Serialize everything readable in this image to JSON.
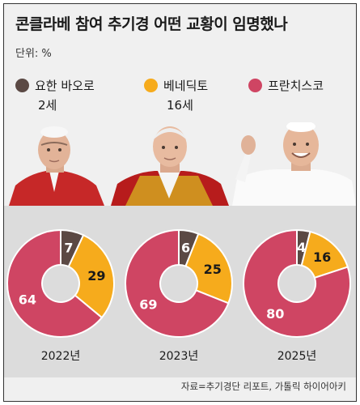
{
  "title": "콘클라베 참여 추기경 어떤 교황이 임명했나",
  "unit": "단위: %",
  "legend": [
    {
      "name": "요한 바오로",
      "sub": "2세",
      "color": "#5b4944"
    },
    {
      "name": "베네딕토",
      "sub": "16세",
      "color": "#f6ab1c"
    },
    {
      "name": "프란치스코",
      "sub": "",
      "color": "#cf4563"
    }
  ],
  "photos": [
    {
      "name": "pope-john-paul-ii-photo"
    },
    {
      "name": "pope-benedict-xvi-photo"
    },
    {
      "name": "pope-francis-photo"
    }
  ],
  "chart_data": [
    {
      "type": "pie",
      "title": "2022년",
      "categories": [
        "요한 바오로 2세",
        "베네딕토 16세",
        "프란치스코"
      ],
      "values": [
        7,
        29,
        64
      ],
      "colors": [
        "#5b4944",
        "#f6ab1c",
        "#cf4563"
      ]
    },
    {
      "type": "pie",
      "title": "2023년",
      "categories": [
        "요한 바오로 2세",
        "베네딕토 16세",
        "프란치스코"
      ],
      "values": [
        6,
        25,
        69
      ],
      "colors": [
        "#5b4944",
        "#f6ab1c",
        "#cf4563"
      ]
    },
    {
      "type": "pie",
      "title": "2025년",
      "categories": [
        "요한 바오로 2세",
        "베네딕토 16세",
        "프란치스코"
      ],
      "values": [
        4,
        16,
        80
      ],
      "colors": [
        "#5b4944",
        "#f6ab1c",
        "#cf4563"
      ]
    }
  ],
  "source": "자료=추기경단 리포트, 가톨릭 하이어아키"
}
